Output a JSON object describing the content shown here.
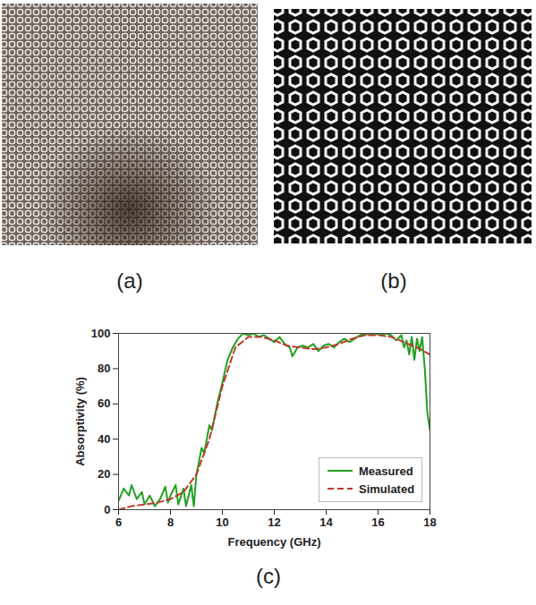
{
  "panel_labels": [
    "(a)",
    "(b)",
    "(c)"
  ],
  "chart_data": {
    "type": "line",
    "x_label": "Frequency (GHz)",
    "y_label": "Absorptivity (%)",
    "xlim": [
      6,
      18
    ],
    "xticks": [
      6,
      8,
      10,
      12,
      14,
      16,
      18
    ],
    "ylim": [
      0,
      100
    ],
    "yticks": [
      0,
      20,
      40,
      60,
      80,
      100
    ],
    "grid": false,
    "legend": "bottom-right",
    "series": [
      {
        "name": "Measured",
        "color": "#22a022",
        "line_style": "solid",
        "x": [
          6.0,
          6.2,
          6.4,
          6.5,
          6.7,
          6.9,
          7.0,
          7.2,
          7.4,
          7.6,
          7.8,
          7.9,
          8.0,
          8.2,
          8.3,
          8.5,
          8.6,
          8.8,
          8.9,
          9.0,
          9.2,
          9.3,
          9.5,
          9.6,
          9.8,
          10.0,
          10.2,
          10.4,
          10.6,
          10.8,
          11.0,
          11.2,
          11.4,
          11.6,
          11.8,
          12.0,
          12.2,
          12.4,
          12.6,
          12.7,
          12.9,
          13.1,
          13.3,
          13.5,
          13.7,
          13.9,
          14.1,
          14.3,
          14.5,
          14.7,
          14.9,
          15.1,
          15.3,
          15.5,
          15.7,
          15.9,
          16.1,
          16.3,
          16.5,
          16.7,
          16.9,
          17.0,
          17.1,
          17.2,
          17.3,
          17.4,
          17.5,
          17.6,
          17.7,
          17.8,
          17.9,
          18.0
        ],
        "values": [
          5,
          12,
          8,
          14,
          6,
          10,
          3,
          8,
          2,
          6,
          13,
          4,
          8,
          14,
          3,
          12,
          2,
          14,
          2,
          20,
          35,
          32,
          48,
          45,
          60,
          72,
          85,
          92,
          97,
          100,
          99,
          100,
          98,
          99,
          97,
          95,
          98,
          94,
          92,
          87,
          92,
          93,
          92,
          94,
          90,
          93,
          94,
          92,
          95,
          97,
          95,
          97,
          99,
          100,
          99,
          100,
          99,
          100,
          99,
          96,
          99,
          92,
          96,
          88,
          98,
          85,
          97,
          90,
          98,
          80,
          55,
          45
        ]
      },
      {
        "name": "Simulated",
        "color": "#c0392b",
        "line_style": "dashed",
        "x": [
          6,
          6.5,
          7,
          7.5,
          8,
          8.5,
          9,
          9.5,
          10,
          10.5,
          11,
          11.5,
          12,
          12.5,
          13,
          13.5,
          14,
          14.5,
          15,
          15.5,
          16,
          16.5,
          17,
          17.5,
          18
        ],
        "values": [
          0,
          2,
          3,
          4,
          6,
          10,
          20,
          40,
          70,
          92,
          98,
          98,
          96,
          93,
          92,
          91,
          92,
          94,
          97,
          99,
          99,
          98,
          95,
          92,
          88
        ]
      }
    ]
  }
}
